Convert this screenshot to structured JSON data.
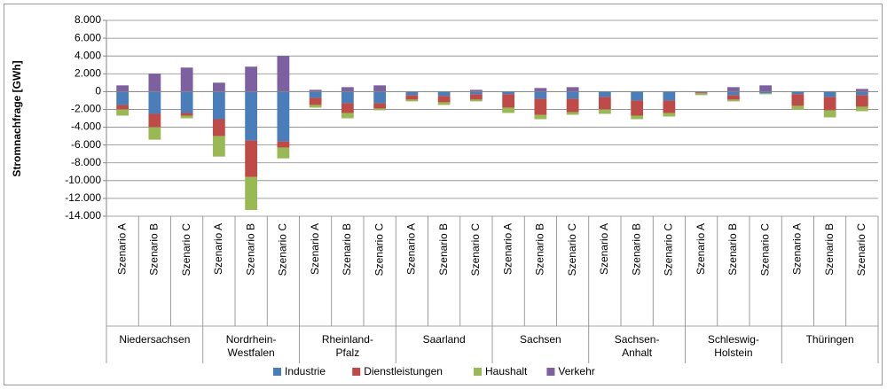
{
  "chart_data": {
    "type": "stacked-bar",
    "y_label": "Stromnachfrage [GWh]",
    "categories": [
      "Szenario A",
      "Szenario B",
      "Szenario C",
      "Szenario A",
      "Szenario B",
      "Szenario C",
      "Szenario A",
      "Szenario B",
      "Szenario C",
      "Szenario A",
      "Szenario B",
      "Szenario C",
      "Szenario A",
      "Szenario B",
      "Szenario C",
      "Szenario A",
      "Szenario B",
      "Szenario C",
      "Szenario A",
      "Szenario B",
      "Szenario C",
      "Szenario A",
      "Szenario B",
      "Szenario C"
    ],
    "groups": [
      "Niedersachsen",
      "Nordrhein-Westfalen",
      "Rheinland-Pfalz",
      "Saarland",
      "Sachsen",
      "Sachsen-Anhalt",
      "Schleswig-Holstein",
      "Thüringen"
    ],
    "series": [
      {
        "name": "Industrie",
        "color": "#4a7ebb",
        "values": [
          -1500,
          -2500,
          -2400,
          -3100,
          -5500,
          -5600,
          -700,
          -1300,
          -1300,
          -400,
          -500,
          -300,
          -300,
          -800,
          -800,
          -600,
          -1000,
          -1000,
          -100,
          -400,
          -200,
          -300,
          -600,
          -400
        ]
      },
      {
        "name": "Dienstleistungen",
        "color": "#be4b48",
        "values": [
          -500,
          -1500,
          -300,
          -1900,
          -4100,
          -700,
          -800,
          -1100,
          -600,
          -500,
          -700,
          -600,
          -1500,
          -1800,
          -1500,
          -1400,
          -1700,
          -1400,
          -100,
          -500,
          0,
          -1300,
          -1500,
          -1300
        ]
      },
      {
        "name": "Haushalt",
        "color": "#98b954",
        "values": [
          -700,
          -1400,
          -300,
          -2300,
          -3700,
          -1200,
          -300,
          -600,
          -200,
          -200,
          -300,
          -200,
          -600,
          -500,
          -300,
          -500,
          -400,
          -400,
          -200,
          -200,
          -100,
          -400,
          -800,
          -500
        ]
      },
      {
        "name": "Verkehr",
        "color": "#7d60a0",
        "values": [
          700,
          2000,
          2700,
          1000,
          2800,
          4000,
          200,
          500,
          700,
          0,
          0,
          200,
          0,
          400,
          500,
          0,
          0,
          0,
          0,
          500,
          700,
          0,
          0,
          300
        ]
      }
    ],
    "ylim": [
      -14000,
      8000
    ],
    "yticks": [
      {
        "value": 8000,
        "label": "8.000"
      },
      {
        "value": 6000,
        "label": "6.000"
      },
      {
        "value": 4000,
        "label": "4.000"
      },
      {
        "value": 2000,
        "label": "2.000"
      },
      0,
      {
        "value": -2000,
        "label": "-2.000"
      },
      {
        "value": -4000,
        "label": "-4.000"
      },
      {
        "value": -6000,
        "label": "-6.000"
      },
      {
        "value": -8000,
        "label": "-8.000"
      },
      {
        "value": -10000,
        "label": "-10.000"
      },
      {
        "value": -12000,
        "label": "-12.000"
      },
      {
        "value": -14000,
        "label": "-14.000"
      }
    ],
    "grid": true,
    "legend": "bottom"
  }
}
